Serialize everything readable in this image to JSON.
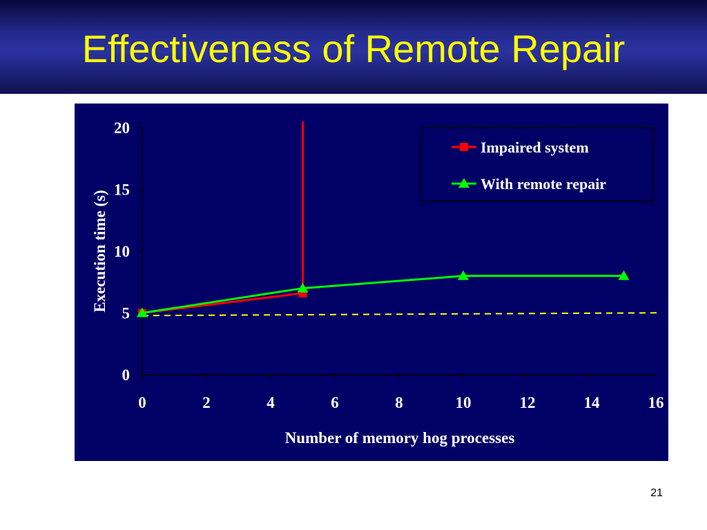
{
  "slide": {
    "title": "Effectiveness of Remote Repair",
    "page_number": "21"
  },
  "chart_data": {
    "type": "line",
    "title": "",
    "xlabel": "Number of memory hog processes",
    "ylabel": "Execution time (s)",
    "xlim": [
      0,
      16
    ],
    "ylim": [
      0,
      20
    ],
    "x_ticks": [
      0,
      2,
      4,
      6,
      8,
      10,
      12,
      14,
      16
    ],
    "y_ticks": [
      0,
      5,
      10,
      15,
      20
    ],
    "grid": false,
    "legend_position": "top-right",
    "background_color": "#000066",
    "series": [
      {
        "name": "Impaired system",
        "color": "#ff0000",
        "marker": "square",
        "points": [
          {
            "x": 0,
            "y": 5
          },
          {
            "x": 5,
            "y": 6.6
          },
          {
            "x": 5,
            "y": 20.5
          }
        ]
      },
      {
        "name": "With remote repair",
        "color": "#00ff00",
        "marker": "triangle",
        "points": [
          {
            "x": 0,
            "y": 5
          },
          {
            "x": 5,
            "y": 7
          },
          {
            "x": 10,
            "y": 8
          },
          {
            "x": 15,
            "y": 8
          }
        ]
      }
    ],
    "reference_line": {
      "y": 4.9,
      "color": "#ffff00",
      "style": "dashed"
    }
  }
}
